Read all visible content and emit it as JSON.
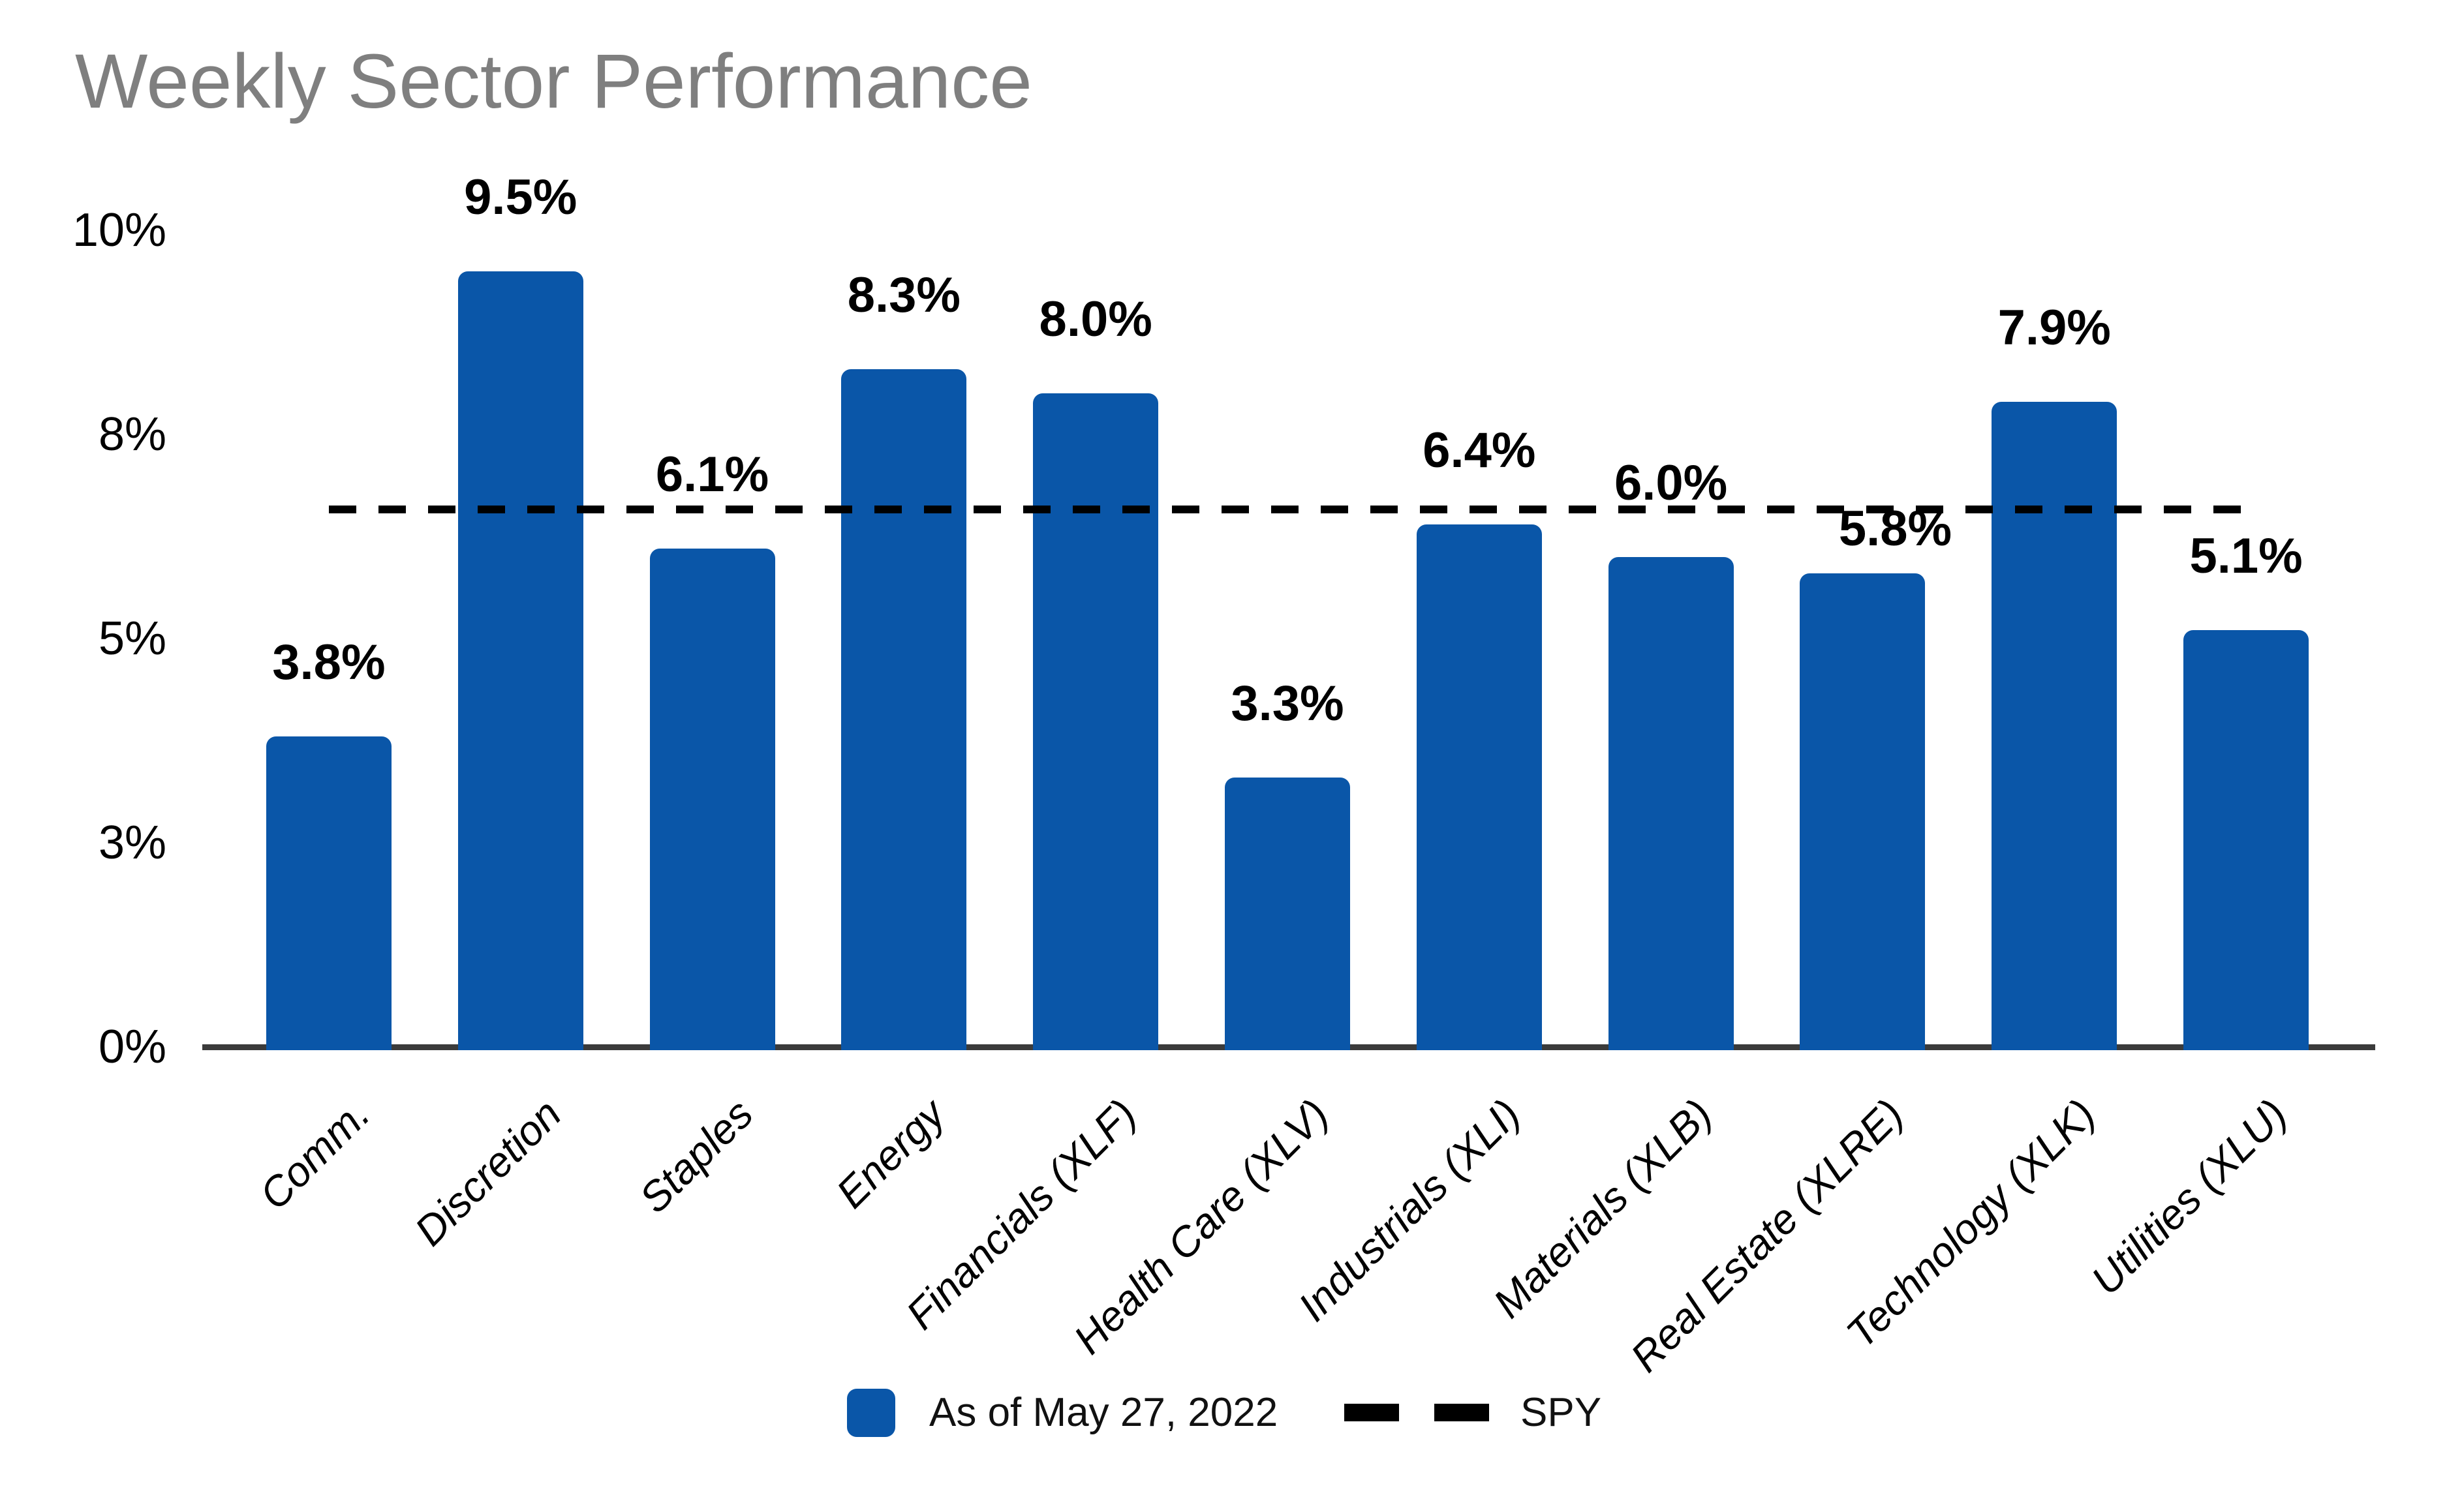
{
  "colors": {
    "bar": "#0A56A8",
    "title": "#7F7F7F",
    "axis": "#3B3B3B",
    "spy_line": "#000000"
  },
  "chart_data": {
    "type": "bar",
    "title": "Weekly Sector Performance",
    "categories": [
      "Comm.",
      "Discretion",
      "Staples",
      "Energy",
      "Financials (XLF)",
      "Health Care (XLV)",
      "Industrials (XLI)",
      "Materials (XLB)",
      "Real Estate (XLRE)",
      "Technology (XLK)",
      "Utilities (XLU)"
    ],
    "values": [
      3.8,
      9.5,
      6.1,
      8.3,
      8.0,
      3.3,
      6.4,
      6.0,
      5.8,
      7.9,
      5.1
    ],
    "value_labels": [
      "3.8%",
      "9.5%",
      "6.1%",
      "8.3%",
      "8.0%",
      "3.3%",
      "6.4%",
      "6.0%",
      "5.8%",
      "7.9%",
      "5.1%"
    ],
    "y_ticks": [
      {
        "v": 0,
        "label": "0%"
      },
      {
        "v": 2.5,
        "label": "3%"
      },
      {
        "v": 5,
        "label": "5%"
      },
      {
        "v": 7.5,
        "label": "8%"
      },
      {
        "v": 10,
        "label": "10%"
      }
    ],
    "ylim": [
      0,
      10
    ],
    "xlabel": "",
    "ylabel": "",
    "grid": false,
    "legend_position": "bottom",
    "spy_line": {
      "value": 6.58,
      "style": "dashed"
    },
    "legend": [
      {
        "icon": "bar-swatch",
        "label": "As of May 27, 2022"
      },
      {
        "icon": "dashed-line",
        "label": "SPY"
      }
    ],
    "label_nudges": {
      "Real Estate (XLRE)": {
        "dx": 50,
        "dy": 45
      }
    }
  }
}
